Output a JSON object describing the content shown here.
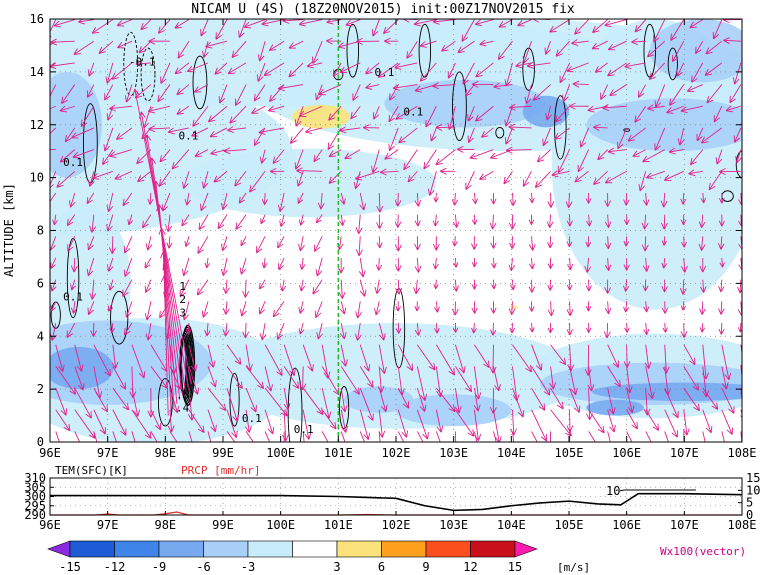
{
  "title": "NICAM U (4S) (18Z20NOV2015) init:00Z17NOV2015 fix",
  "colors": {
    "bg": "#ffffff",
    "vector": "#e0218a",
    "marker_line": "#22bb22",
    "contour": "#000000",
    "temp_line": "#000000",
    "precip_line": "#e03030",
    "units_label": "#cc0088"
  },
  "chart_data": [
    {
      "type": "heatmap",
      "panel": "main",
      "title": "NICAM U (4S) (18Z20NOV2015) init:00Z17NOV2015 fix",
      "ylabel": "ALTITUDE [km]",
      "x_ticks": [
        "96E",
        "97E",
        "98E",
        "99E",
        "100E",
        "101E",
        "102E",
        "103E",
        "104E",
        "105E",
        "106E",
        "107E",
        "108E"
      ],
      "y_ticks": [
        "0",
        "2",
        "4",
        "6",
        "8",
        "10",
        "12",
        "14",
        "16"
      ],
      "xlim": [
        96,
        108
      ],
      "ylim": [
        0,
        16
      ],
      "grid": true,
      "marker_longitude": 101,
      "contour_labels": [
        {
          "text": "-0.1",
          "x": 97.6,
          "y": 14.4
        },
        {
          "text": "0.1",
          "x": 101.8,
          "y": 14.0
        },
        {
          "text": "0.1",
          "x": 102.3,
          "y": 12.5
        },
        {
          "text": "0.1",
          "x": 98.4,
          "y": 11.6
        },
        {
          "text": "0.1",
          "x": 96.4,
          "y": 10.6
        },
        {
          "text": "0.1",
          "x": 96.4,
          "y": 5.5
        },
        {
          "text": "1",
          "x": 98.3,
          "y": 5.9
        },
        {
          "text": "2",
          "x": 98.3,
          "y": 5.4
        },
        {
          "text": "3",
          "x": 98.3,
          "y": 4.9
        },
        {
          "text": ".5",
          "x": 98.3,
          "y": 1.8
        },
        {
          "text": ".4",
          "x": 98.3,
          "y": 1.3
        },
        {
          "text": "0.1",
          "x": 99.5,
          "y": 0.9
        },
        {
          "text": "0.1",
          "x": 100.4,
          "y": 0.5
        }
      ]
    },
    {
      "type": "line",
      "panel": "timeseries",
      "series": [
        {
          "name": "TEM(SFC)[K]",
          "axis": "left",
          "x": [
            96,
            97,
            98,
            99,
            100,
            101,
            101.5,
            102,
            102.5,
            103,
            103.5,
            104,
            104.5,
            105,
            105.5,
            105.9,
            106,
            106.2,
            107,
            108
          ],
          "values": [
            300.5,
            300.5,
            300.5,
            300.5,
            300.5,
            300.0,
            299.5,
            299.0,
            295.0,
            292.5,
            293.0,
            295.0,
            296.5,
            297.5,
            296.0,
            295.5,
            297.5,
            301.5,
            301.5,
            301.0
          ]
        },
        {
          "name": "PRCP [mm/hr]",
          "axis": "right",
          "x": [
            96,
            96.8,
            97,
            97.2,
            97.8,
            98,
            98.2,
            98.4,
            99,
            100,
            101,
            101.5,
            102,
            103,
            104,
            105,
            106,
            107,
            108
          ],
          "values": [
            0,
            0,
            0.4,
            0,
            0,
            0.5,
            1.2,
            0,
            0,
            0,
            0,
            0.2,
            0,
            0,
            0,
            0,
            0,
            0,
            0
          ]
        }
      ],
      "left_ticks": [
        "310",
        "305",
        "300",
        "295",
        "290"
      ],
      "left_range": [
        290,
        310
      ],
      "right_ticks": [
        "15",
        "10",
        "5",
        "0"
      ],
      "right_range": [
        0,
        15
      ],
      "x_ticks": [
        "96E",
        "97E",
        "98E",
        "99E",
        "100E",
        "101E",
        "102E",
        "103E",
        "104E",
        "105E",
        "106E",
        "107E",
        "108E"
      ],
      "xlim": [
        96,
        108
      ],
      "annotations": [
        {
          "text": "10",
          "x": 105.85,
          "y": 302
        }
      ]
    }
  ],
  "colorbar": {
    "labels": [
      "-15",
      "-12",
      "-9",
      "-6",
      "-3",
      "3",
      "6",
      "9",
      "12",
      "15"
    ],
    "colors": [
      "#8a2be2",
      "#1e5bd6",
      "#3f84e8",
      "#78aaf0",
      "#a8cff7",
      "#c9ecfa",
      "#ffffff",
      "#fbe27a",
      "#ffa11f",
      "#fb4f1e",
      "#c80f1a",
      "#ff1cae"
    ],
    "units": "[m/s]"
  },
  "vector_label": "Wx100(vector)"
}
